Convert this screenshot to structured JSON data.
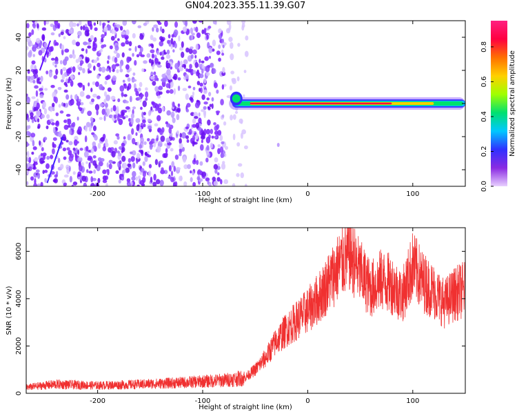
{
  "figure_title": "GN04.2023.355.11.39.G07",
  "colors": {
    "snr_line": "#f03030",
    "spectrogram_scatter": "#7a1fff",
    "colorbar_stops": [
      "#e8d0ff",
      "#8a2be2",
      "#3030ff",
      "#00c8ff",
      "#00e070",
      "#a0ff00",
      "#ffd000",
      "#ff7000",
      "#ff0040",
      "#ff2080"
    ]
  },
  "chart_data": [
    {
      "type": "heatmap",
      "xlabel": "Height of straight line (km)",
      "ylabel": "Frequency (Hz)",
      "xlim": [
        -268,
        150
      ],
      "ylim": [
        -50,
        50
      ],
      "x_ticks": [
        -200,
        -100,
        0,
        100
      ],
      "x_tick_labels": [
        "-200",
        "-100",
        "0",
        "100"
      ],
      "y_ticks": [
        -40,
        -20,
        0,
        20,
        40
      ],
      "y_tick_labels": [
        "-40",
        "-20",
        "0",
        "20",
        "40"
      ],
      "noise_region_x": [
        -268,
        -58
      ],
      "signal_trace": {
        "x_start": -75,
        "x_end": 150,
        "frequency_hz": 0,
        "peak_amplitude_region_x": [
          -55,
          80
        ]
      },
      "colorbar": {
        "label": "Normalized spectral amplitude",
        "range": [
          0.0,
          0.95
        ],
        "ticks": [
          0.0,
          0.2,
          0.4,
          0.6,
          0.8
        ],
        "tick_labels": [
          "0.0",
          "0.2",
          "0.4",
          "0.6",
          "0.8"
        ]
      }
    },
    {
      "type": "line",
      "xlabel": "Height of straight line (km)",
      "ylabel": "SNR (10 * v/v)",
      "xlim": [
        -268,
        150
      ],
      "ylim": [
        0,
        7000
      ],
      "x_ticks": [
        -200,
        -100,
        0,
        100
      ],
      "x_tick_labels": [
        "-200",
        "-100",
        "0",
        "100"
      ],
      "y_ticks": [
        0,
        2000,
        4000,
        6000
      ],
      "y_tick_labels": [
        "0",
        "2000",
        "4000",
        "6000"
      ],
      "series": [
        {
          "x": [
            -268,
            -240,
            -200,
            -160,
            -120,
            -100,
            -80,
            -60,
            -50,
            -40,
            -30,
            -20,
            -10,
            0,
            10,
            20,
            30,
            40,
            50,
            60,
            70,
            80,
            90,
            100,
            110,
            120,
            130,
            140,
            150
          ],
          "y": [
            250,
            380,
            330,
            380,
            450,
            500,
            550,
            650,
            1000,
            1500,
            2200,
            2700,
            3100,
            3500,
            4000,
            4700,
            5400,
            5900,
            5100,
            4400,
            4800,
            4600,
            4100,
            5400,
            4700,
            4300,
            3800,
            4200,
            4400
          ]
        }
      ]
    }
  ]
}
